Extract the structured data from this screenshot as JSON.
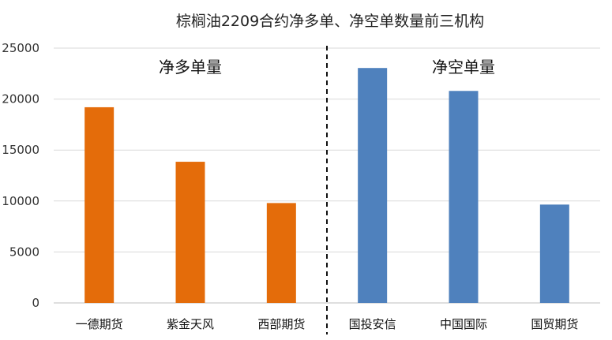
{
  "chart_data": {
    "type": "bar",
    "title": "棕榈油2209合约净多单、净空单数量前三机构",
    "xlabel": "",
    "ylabel": "",
    "ylim": [
      0,
      25000
    ],
    "yticks": [
      "0",
      "5000",
      "10000",
      "15000",
      "20000",
      "25000"
    ],
    "grid": true,
    "legend": "none",
    "groups": [
      {
        "label": "净多单量",
        "color": "#E46C0A",
        "categories": [
          "一德期货",
          "紫金天风",
          "西部期货"
        ],
        "values": [
          19200,
          13850,
          9800
        ]
      },
      {
        "label": "净空单量",
        "color": "#4F81BD",
        "categories": [
          "国投安信",
          "中国国际",
          "国贸期货"
        ],
        "values": [
          23050,
          20800,
          9650
        ]
      }
    ]
  }
}
